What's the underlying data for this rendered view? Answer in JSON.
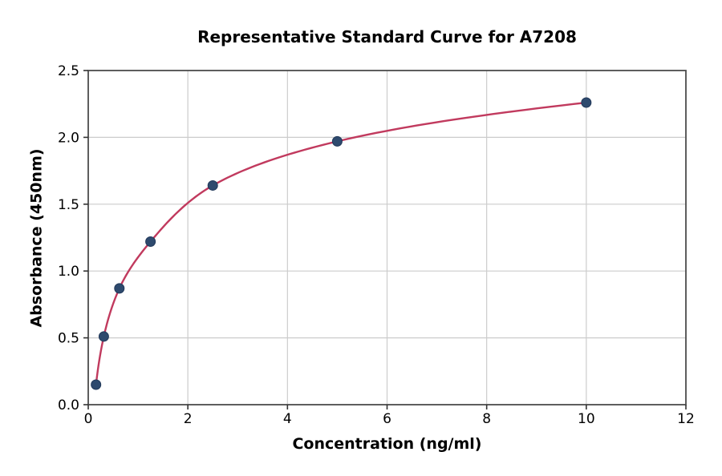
{
  "chart_data": {
    "type": "scatter",
    "title": "Representative Standard Curve for A7208",
    "xlabel": "Concentration (ng/ml)",
    "ylabel": "Absorbance (450nm)",
    "xlim": [
      0,
      12
    ],
    "ylim": [
      0.0,
      2.5
    ],
    "x_ticks": [
      0,
      2,
      4,
      6,
      8,
      10,
      12
    ],
    "x_tick_labels": [
      "0",
      "2",
      "4",
      "6",
      "8",
      "10",
      "12"
    ],
    "y_ticks": [
      0.0,
      0.5,
      1.0,
      1.5,
      2.0,
      2.5
    ],
    "y_tick_labels": [
      "0.0",
      "0.5",
      "1.0",
      "1.5",
      "2.0",
      "2.5"
    ],
    "grid": true,
    "legend": false,
    "series": [
      {
        "name": "standard-data-points",
        "type": "scatter",
        "x": [
          0.156,
          0.3125,
          0.625,
          1.25,
          2.5,
          5,
          10
        ],
        "y": [
          0.15,
          0.51,
          0.87,
          1.22,
          1.64,
          1.97,
          2.26
        ],
        "marker_color": "#2e4a6e",
        "marker_edge_color": "#22395a"
      },
      {
        "name": "fitted-standard-curve",
        "type": "line",
        "x": [
          0.156,
          0.3125,
          0.625,
          1.25,
          2.5,
          5,
          10
        ],
        "y": [
          0.15,
          0.51,
          0.87,
          1.22,
          1.64,
          1.97,
          2.26
        ],
        "line_color": "#c13a5e",
        "interpolation": "smooth-log-x"
      }
    ],
    "colors": {
      "grid": "#cccccc",
      "spine": "#4d4d4d",
      "tick": "#333333",
      "text": "#000000",
      "background": "#ffffff"
    }
  }
}
